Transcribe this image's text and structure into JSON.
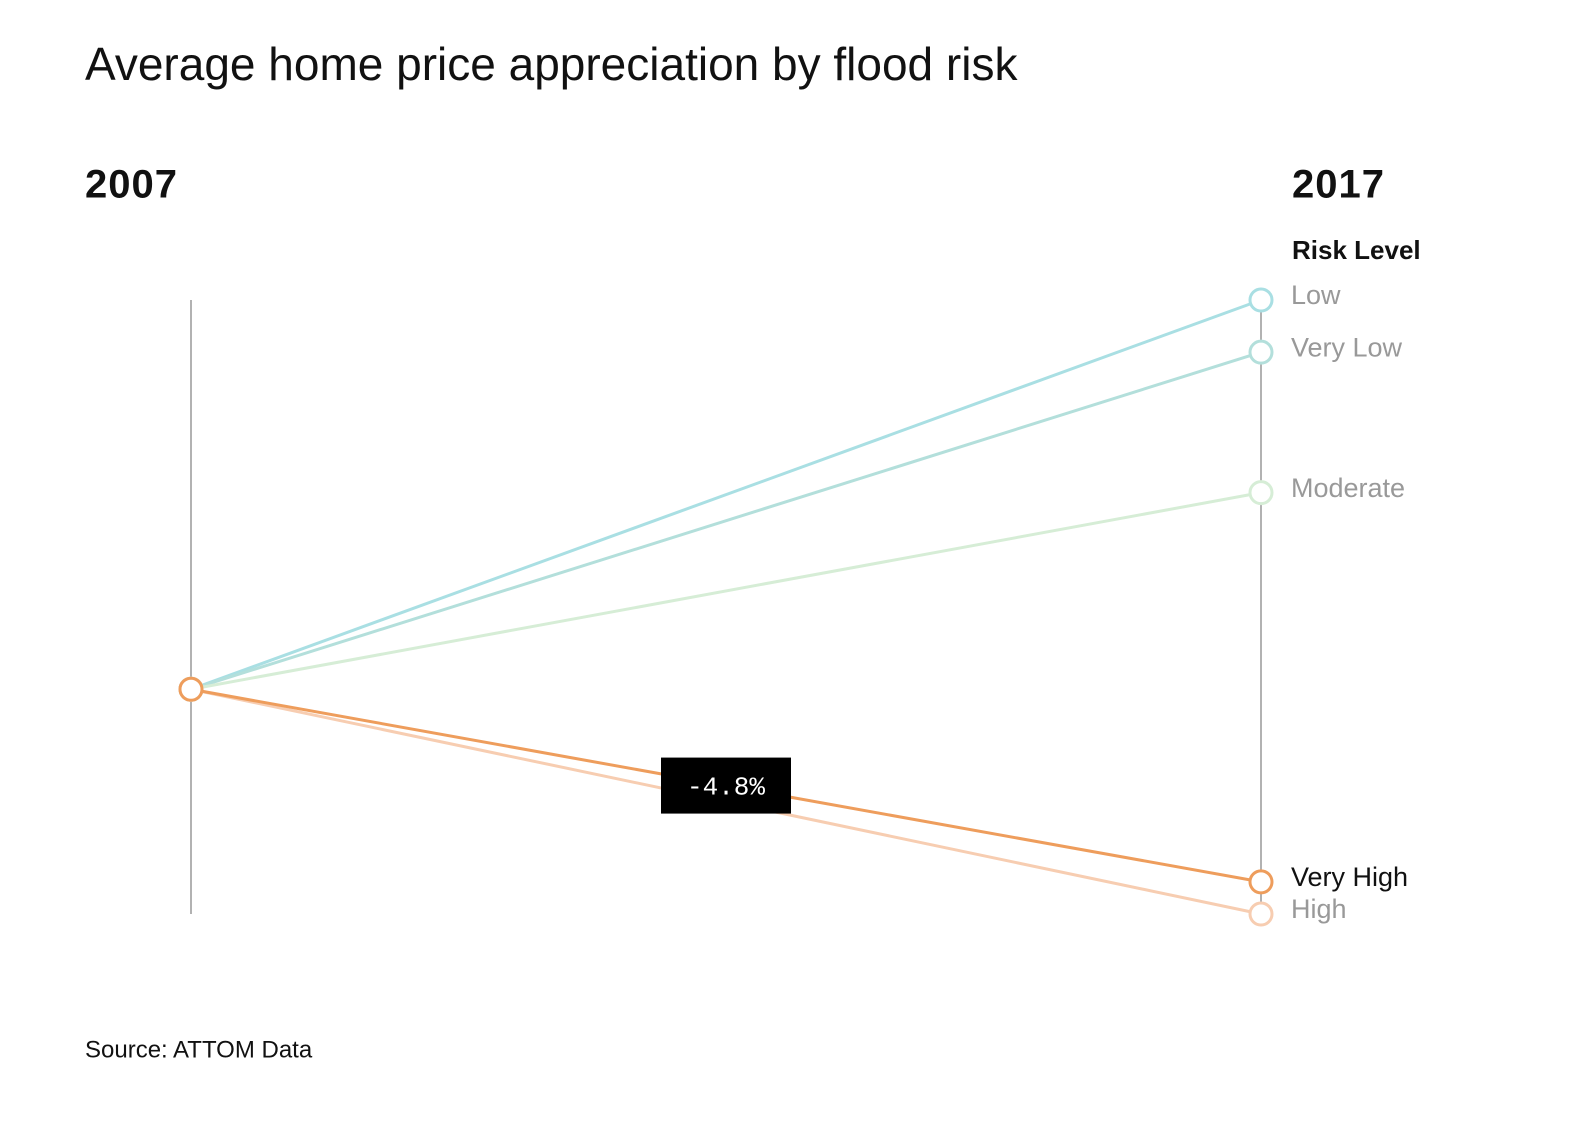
{
  "chart_data": {
    "type": "slope",
    "title": "Average home price appreciation by flood risk",
    "source": "Source: ATTOM Data",
    "categories": [
      "2007",
      "2017"
    ],
    "legend_title": "Risk Level",
    "ylim": [
      -5.6,
      9.7
    ],
    "series": [
      {
        "name": "Low",
        "color": "#a9dfe3",
        "values": [
          0,
          9.7
        ]
      },
      {
        "name": "Very Low",
        "color": "#b3dfdb",
        "values": [
          0,
          8.4
        ]
      },
      {
        "name": "Moderate",
        "color": "#d6edd6",
        "values": [
          0,
          4.9
        ]
      },
      {
        "name": "Very High",
        "color": "#ee9d5c",
        "values": [
          0,
          -4.8
        ],
        "value_labels": [
          null,
          "-4.8%"
        ],
        "highlight": true
      },
      {
        "name": "High",
        "color": "#f7cdb1",
        "values": [
          0,
          -5.6
        ]
      }
    ]
  }
}
